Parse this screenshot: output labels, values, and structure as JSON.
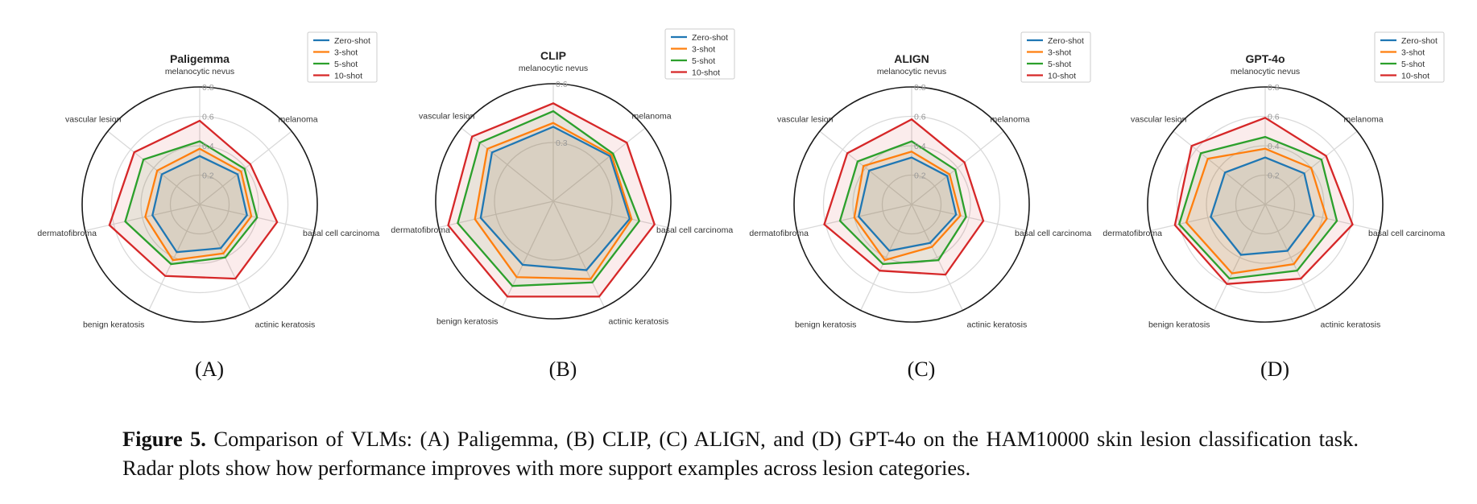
{
  "figure": {
    "caption_label": "Figure 5.",
    "caption_text": "Comparison of VLMs: (A) Paligemma, (B) CLIP, (C) ALIGN, and (D) GPT-4o on the HAM10000 skin lesion classification task. Radar plots show how performance improves with more support examples across lesion categories."
  },
  "colors": {
    "Zero-shot": "#1f77b4",
    "3-shot": "#ff7f0e",
    "5-shot": "#2ca02c",
    "10-shot": "#d62728"
  },
  "chart_data": [
    {
      "type": "radar",
      "panel_label": "(A)",
      "title": "Paligemma",
      "categories": [
        "melanocytic nevus",
        "melanoma",
        "basal cell carcinoma",
        "actinic keratosis",
        "benign keratosis",
        "dermatofibroma",
        "vascular lesion"
      ],
      "rlim": [
        0,
        0.8
      ],
      "rticks": [
        0.2,
        0.4,
        0.6,
        0.8
      ],
      "rtick_labels": [
        "0.2",
        "0.4",
        "0.6",
        "0.8"
      ],
      "series": [
        {
          "name": "Zero-shot",
          "values": [
            0.33,
            0.33,
            0.33,
            0.33,
            0.36,
            0.33,
            0.33
          ]
        },
        {
          "name": "3-shot",
          "values": [
            0.38,
            0.36,
            0.36,
            0.37,
            0.42,
            0.38,
            0.37
          ]
        },
        {
          "name": "5-shot",
          "values": [
            0.43,
            0.39,
            0.4,
            0.4,
            0.45,
            0.52,
            0.49
          ]
        },
        {
          "name": "10-shot",
          "values": [
            0.57,
            0.44,
            0.54,
            0.56,
            0.54,
            0.63,
            0.57
          ]
        }
      ],
      "legend_loc": "top-right",
      "grid": true
    },
    {
      "type": "radar",
      "panel_label": "(B)",
      "title": "CLIP",
      "categories": [
        "melanocytic nevus",
        "melanoma",
        "basal cell carcinoma",
        "actinic keratosis",
        "benign keratosis",
        "dermatofibroma",
        "vascular lesion"
      ],
      "rlim": [
        0,
        0.6
      ],
      "rticks": [
        0.3,
        0.6
      ],
      "rtick_labels": [
        "0.3",
        "0.6"
      ],
      "series": [
        {
          "name": "Zero-shot",
          "values": [
            0.38,
            0.37,
            0.4,
            0.39,
            0.36,
            0.38,
            0.4
          ]
        },
        {
          "name": "3-shot",
          "values": [
            0.4,
            0.38,
            0.41,
            0.44,
            0.43,
            0.41,
            0.43
          ]
        },
        {
          "name": "5-shot",
          "values": [
            0.46,
            0.39,
            0.45,
            0.46,
            0.48,
            0.5,
            0.48
          ]
        },
        {
          "name": "10-shot",
          "values": [
            0.5,
            0.48,
            0.53,
            0.54,
            0.54,
            0.55,
            0.53
          ]
        }
      ],
      "legend_loc": "top-right",
      "grid": true
    },
    {
      "type": "radar",
      "panel_label": "(C)",
      "title": "ALIGN",
      "categories": [
        "melanocytic nevus",
        "melanoma",
        "basal cell carcinoma",
        "actinic keratosis",
        "benign keratosis",
        "dermatofibroma",
        "vascular lesion"
      ],
      "rlim": [
        0,
        0.8
      ],
      "rticks": [
        0.2,
        0.4,
        0.6,
        0.8
      ],
      "rtick_labels": [
        "0.2",
        "0.4",
        "0.6",
        "0.8"
      ],
      "series": [
        {
          "name": "Zero-shot",
          "values": [
            0.32,
            0.31,
            0.31,
            0.29,
            0.35,
            0.37,
            0.37
          ]
        },
        {
          "name": "3-shot",
          "values": [
            0.36,
            0.33,
            0.34,
            0.32,
            0.42,
            0.4,
            0.42
          ]
        },
        {
          "name": "5-shot",
          "values": [
            0.43,
            0.38,
            0.38,
            0.42,
            0.45,
            0.5,
            0.47
          ]
        },
        {
          "name": "10-shot",
          "values": [
            0.58,
            0.46,
            0.5,
            0.53,
            0.5,
            0.61,
            0.56
          ]
        }
      ],
      "legend_loc": "top-right",
      "grid": true
    },
    {
      "type": "radar",
      "panel_label": "(D)",
      "title": "GPT-4o",
      "categories": [
        "melanocytic nevus",
        "melanoma",
        "basal cell carcinoma",
        "actinic keratosis",
        "benign keratosis",
        "dermatofibroma",
        "vascular lesion"
      ],
      "rlim": [
        0,
        0.8
      ],
      "rticks": [
        0.2,
        0.4,
        0.6,
        0.8
      ],
      "rtick_labels": [
        "0.2",
        "0.4",
        "0.6",
        "0.8"
      ],
      "series": [
        {
          "name": "Zero-shot",
          "values": [
            0.32,
            0.34,
            0.34,
            0.35,
            0.38,
            0.38,
            0.35
          ]
        },
        {
          "name": "3-shot",
          "values": [
            0.38,
            0.4,
            0.43,
            0.45,
            0.52,
            0.55,
            0.5
          ]
        },
        {
          "name": "5-shot",
          "values": [
            0.46,
            0.49,
            0.5,
            0.5,
            0.56,
            0.6,
            0.56
          ]
        },
        {
          "name": "10-shot",
          "values": [
            0.59,
            0.53,
            0.61,
            0.56,
            0.6,
            0.63,
            0.64
          ]
        }
      ],
      "legend_loc": "top-right",
      "grid": true
    }
  ]
}
